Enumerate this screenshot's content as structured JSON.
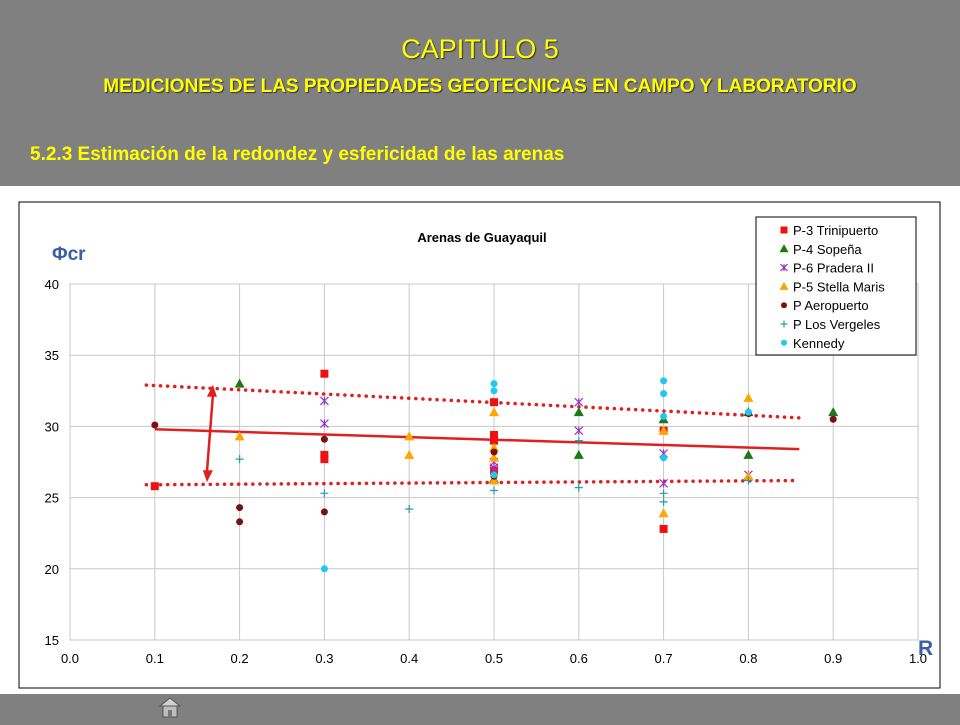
{
  "slide": {
    "chapter": "CAPITULO 5",
    "heading": "MEDICIONES DE LAS PROPIEDADES GEOTECNICAS EN CAMPO Y LABORATORIO",
    "section": "5.2.3 Estimación de la redondez y esfericidad de las arenas"
  },
  "colors": {
    "header_bg": "#808080",
    "heading_text": "#ffff00",
    "trend_line": "#e02020"
  },
  "chart_data": {
    "type": "scatter",
    "title": "Arenas  de  Guayaquil",
    "ylabel": "Φcr",
    "xlabel": "R",
    "xlim": [
      0.0,
      1.0
    ],
    "ylim": [
      15,
      40
    ],
    "xticks": [
      "0.0",
      "0.1",
      "0.2",
      "0.3",
      "0.4",
      "0.5",
      "0.6",
      "0.7",
      "0.8",
      "0.9",
      "1.0"
    ],
    "yticks": [
      "15",
      "20",
      "25",
      "30",
      "35",
      "40"
    ],
    "grid": true,
    "legend_position": "top-right",
    "series": [
      {
        "name": "P-3 Trinipuerto",
        "marker": "square",
        "color": "#ee1111",
        "points": [
          [
            0.1,
            25.8
          ],
          [
            0.3,
            33.7
          ],
          [
            0.3,
            28
          ],
          [
            0.3,
            27.7
          ],
          [
            0.5,
            31.7
          ],
          [
            0.5,
            29.4
          ],
          [
            0.5,
            29
          ],
          [
            0.5,
            26.9
          ],
          [
            0.7,
            29.7
          ],
          [
            0.7,
            22.8
          ]
        ]
      },
      {
        "name": "P-4 Sopeña",
        "marker": "triangle",
        "color": "#1a7a1a",
        "points": [
          [
            0.2,
            33
          ],
          [
            0.5,
            26.3
          ],
          [
            0.6,
            31
          ],
          [
            0.6,
            28
          ],
          [
            0.7,
            30.5
          ],
          [
            0.8,
            28
          ],
          [
            0.8,
            31
          ],
          [
            0.9,
            31
          ]
        ]
      },
      {
        "name": "P-6 Pradera II",
        "marker": "star",
        "color": "#9932cc",
        "points": [
          [
            0.3,
            31.8
          ],
          [
            0.3,
            30.2
          ],
          [
            0.5,
            27.5
          ],
          [
            0.5,
            27.1
          ],
          [
            0.6,
            31.7
          ],
          [
            0.6,
            29.7
          ],
          [
            0.7,
            28.1
          ],
          [
            0.7,
            26
          ],
          [
            0.8,
            26.6
          ]
        ]
      },
      {
        "name": "P-5 Stella Maris",
        "marker": "triangle",
        "color": "#ffa500",
        "points": [
          [
            0.2,
            29.3
          ],
          [
            0.4,
            29.3
          ],
          [
            0.4,
            28
          ],
          [
            0.5,
            31
          ],
          [
            0.5,
            28.5
          ],
          [
            0.5,
            27.8
          ],
          [
            0.5,
            26.2
          ],
          [
            0.7,
            29.7
          ],
          [
            0.7,
            23.9
          ],
          [
            0.8,
            32
          ],
          [
            0.8,
            26.5
          ]
        ]
      },
      {
        "name": "P Aeropuerto",
        "marker": "circle",
        "color": "#7a1010",
        "points": [
          [
            0.1,
            30.1
          ],
          [
            0.2,
            24.3
          ],
          [
            0.2,
            23.3
          ],
          [
            0.3,
            29.1
          ],
          [
            0.3,
            24
          ],
          [
            0.5,
            28.2
          ],
          [
            0.5,
            26.5
          ],
          [
            0.8,
            30.9
          ],
          [
            0.9,
            30.5
          ]
        ]
      },
      {
        "name": "P Los Vergeles",
        "marker": "plus",
        "color": "#2a9aa8",
        "points": [
          [
            0.2,
            27.7
          ],
          [
            0.3,
            25.3
          ],
          [
            0.4,
            24.2
          ],
          [
            0.5,
            25.5
          ],
          [
            0.6,
            29
          ],
          [
            0.6,
            25.7
          ],
          [
            0.7,
            25.3
          ],
          [
            0.7,
            24.7
          ],
          [
            0.8,
            26.2
          ]
        ]
      },
      {
        "name": "Kennedy",
        "marker": "circle",
        "color": "#1ec8f0",
        "points": [
          [
            0.3,
            20
          ],
          [
            0.5,
            33
          ],
          [
            0.5,
            32.5
          ],
          [
            0.5,
            26.6
          ],
          [
            0.7,
            33.2
          ],
          [
            0.7,
            32.3
          ],
          [
            0.7,
            30.7
          ],
          [
            0.7,
            27.8
          ],
          [
            0.8,
            31
          ]
        ]
      }
    ],
    "trend_lines": [
      {
        "style": "solid",
        "x": [
          0.1,
          0.86
        ],
        "y": [
          29.8,
          28.4
        ]
      },
      {
        "style": "dotted",
        "x": [
          0.09,
          0.86
        ],
        "y": [
          32.9,
          30.6
        ]
      },
      {
        "style": "dotted",
        "x": [
          0.09,
          0.86
        ],
        "y": [
          25.9,
          26.2
        ]
      }
    ],
    "range_arrow": {
      "x": 0.165,
      "y": [
        32.5,
        26.5
      ]
    }
  }
}
